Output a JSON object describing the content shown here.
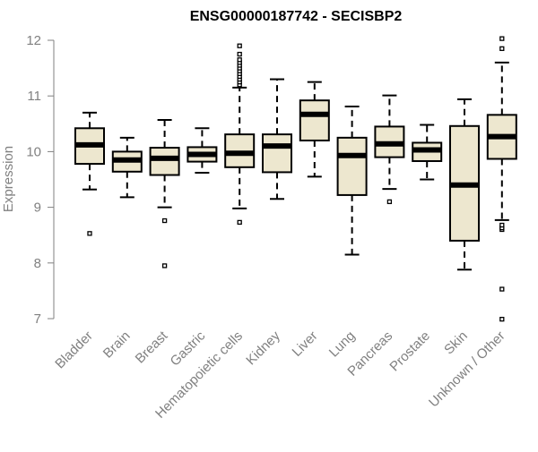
{
  "chart_data": {
    "type": "boxplot",
    "title": "ENSG00000187742 - SECISBP2",
    "xlabel": "",
    "ylabel": "Expression",
    "ylim": [
      6.9,
      12.1
    ],
    "yticks": [
      7,
      8,
      9,
      10,
      11,
      12
    ],
    "ytick_labels": [
      "7",
      "8",
      "9",
      "10",
      "11",
      "12"
    ],
    "grid": false,
    "categories": [
      "Bladder",
      "Brain",
      "Breast",
      "Gastric",
      "Hematopoietic cells",
      "Kidney",
      "Liver",
      "Lung",
      "Pancreas",
      "Prostate",
      "Skin",
      "Unknown / Other"
    ],
    "series": [
      {
        "boxes": [
          {
            "whisker_low": 9.32,
            "q1": 9.78,
            "median": 10.12,
            "q3": 10.42,
            "whisker_high": 10.7,
            "outliers": [
              8.53
            ]
          },
          {
            "whisker_low": 9.18,
            "q1": 9.64,
            "median": 9.85,
            "q3": 10.0,
            "whisker_high": 10.25,
            "outliers": []
          },
          {
            "whisker_low": 9.0,
            "q1": 9.58,
            "median": 9.88,
            "q3": 10.07,
            "whisker_high": 10.57,
            "outliers": [
              8.76,
              7.95
            ]
          },
          {
            "whisker_low": 9.62,
            "q1": 9.82,
            "median": 9.95,
            "q3": 10.08,
            "whisker_high": 10.42,
            "outliers": []
          },
          {
            "whisker_low": 8.98,
            "q1": 9.72,
            "median": 9.97,
            "q3": 10.31,
            "whisker_high": 11.15,
            "outliers": [
              8.73,
              11.2,
              11.25,
              11.3,
              11.35,
              11.4,
              11.45,
              11.5,
              11.55,
              11.6,
              11.65,
              11.75,
              11.9
            ]
          },
          {
            "whisker_low": 9.15,
            "q1": 9.63,
            "median": 10.1,
            "q3": 10.31,
            "whisker_high": 11.3,
            "outliers": []
          },
          {
            "whisker_low": 9.55,
            "q1": 10.2,
            "median": 10.67,
            "q3": 10.92,
            "whisker_high": 11.25,
            "outliers": []
          },
          {
            "whisker_low": 8.15,
            "q1": 9.22,
            "median": 9.93,
            "q3": 10.25,
            "whisker_high": 10.81,
            "outliers": []
          },
          {
            "whisker_low": 9.33,
            "q1": 9.9,
            "median": 10.14,
            "q3": 10.45,
            "whisker_high": 11.01,
            "outliers": [
              9.1
            ]
          },
          {
            "whisker_low": 9.5,
            "q1": 9.83,
            "median": 10.03,
            "q3": 10.16,
            "whisker_high": 10.48,
            "outliers": []
          },
          {
            "whisker_low": 7.88,
            "q1": 8.4,
            "median": 9.4,
            "q3": 10.46,
            "whisker_high": 10.94,
            "outliers": []
          },
          {
            "whisker_low": 8.77,
            "q1": 9.87,
            "median": 10.27,
            "q3": 10.66,
            "whisker_high": 11.6,
            "outliers": [
              8.6,
              8.63,
              8.68,
              7.53,
              6.99,
              11.85,
              12.03
            ]
          }
        ]
      }
    ],
    "box_fill": "#ede7cf",
    "box_stroke": "#000000",
    "axis_color": "#808080"
  }
}
